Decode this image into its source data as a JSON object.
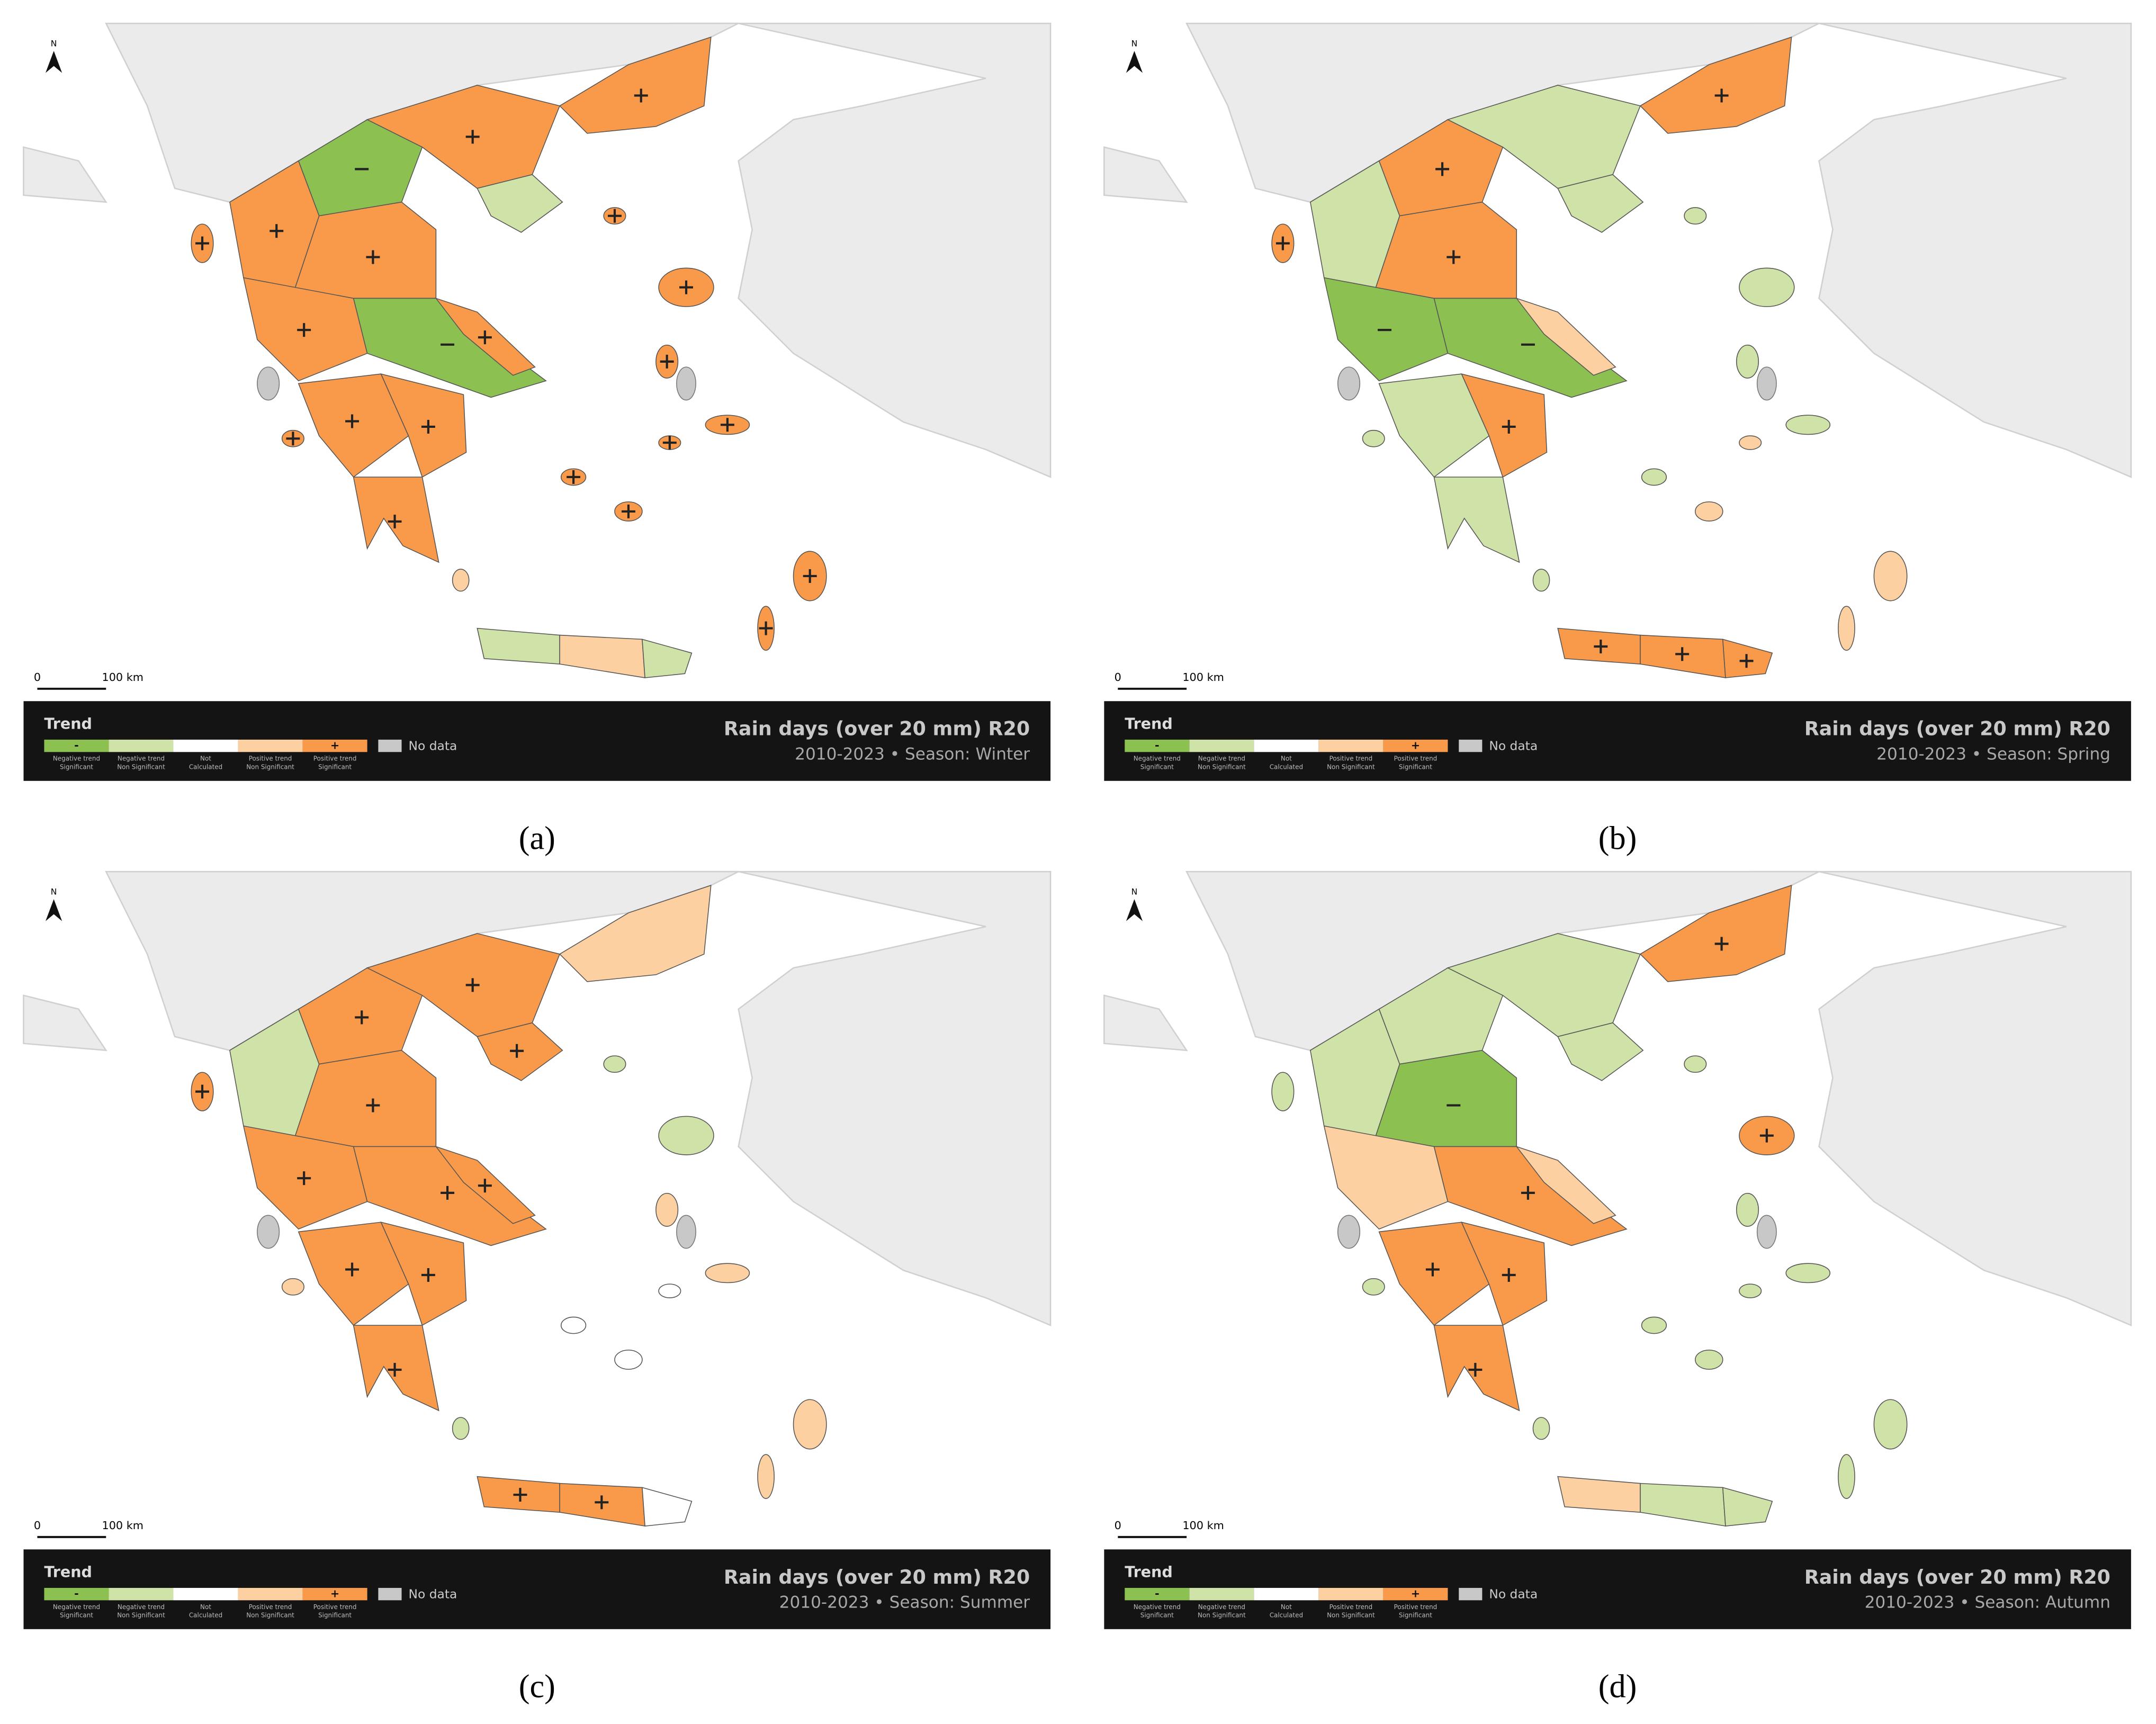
{
  "title": "Rain days (over 20 mm) R20",
  "north": "N",
  "scale_labels": [
    "0",
    "100 km"
  ],
  "legend_title": "Trend",
  "legend_items": [
    {
      "symbol": "-",
      "lines": [
        "Negative trend",
        "Significant"
      ],
      "color": "#8cc152"
    },
    {
      "symbol": null,
      "lines": [
        "Negative trend",
        "Non Significant"
      ],
      "color": "#cfe3a8"
    },
    {
      "symbol": null,
      "lines": [
        "Not",
        "Calculated"
      ],
      "color": "#ffffff"
    },
    {
      "symbol": null,
      "lines": [
        "Positive trend",
        "Non Significant"
      ],
      "color": "#fdd0a2"
    },
    {
      "symbol": "+",
      "lines": [
        "Positive trend",
        "Significant"
      ],
      "color": "#f99a4a"
    }
  ],
  "no_data": "No data",
  "no_data_color": "#c8c8c8",
  "panels": [
    {
      "label": "(a)",
      "subtitle": "2010-2023 • Season: Winter"
    },
    {
      "label": "(b)",
      "subtitle": "2010-2023 • Season: Spring"
    },
    {
      "label": "(c)",
      "subtitle": "2010-2023 • Season: Summer"
    },
    {
      "label": "(d)",
      "subtitle": "2010-2023 • Season: Autumn"
    }
  ]
}
